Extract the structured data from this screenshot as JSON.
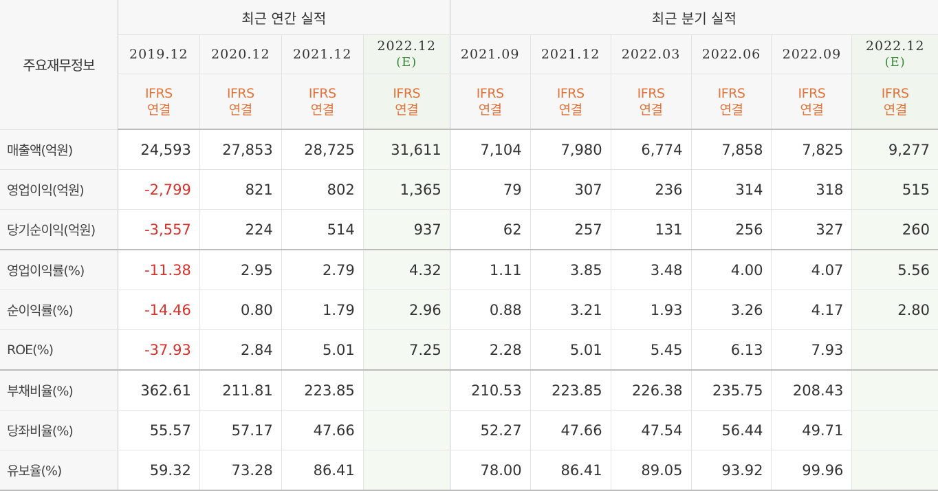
{
  "header": {
    "corner_label": "주요재무정보",
    "annual_title": "최근 연간 실적",
    "quarterly_title": "최근 분기 실적",
    "ifrs_top": "IFRS",
    "ifrs_bottom": "연결",
    "estimate_tag": "(E)",
    "periods": [
      {
        "date": "2019.12"
      },
      {
        "date": "2020.12"
      },
      {
        "date": "2021.12"
      },
      {
        "date": "2022.12"
      },
      {
        "date": "2021.09"
      },
      {
        "date": "2021.12"
      },
      {
        "date": "2022.03"
      },
      {
        "date": "2022.06"
      },
      {
        "date": "2022.09"
      },
      {
        "date": "2022.12"
      }
    ]
  },
  "rows": [
    {
      "label": "매출액(억원)",
      "values": [
        "24,593",
        "27,853",
        "28,725",
        "31,611",
        "7,104",
        "7,980",
        "6,774",
        "7,858",
        "7,825",
        "9,277"
      ]
    },
    {
      "label": "영업이익(억원)",
      "values": [
        "-2,799",
        "821",
        "802",
        "1,365",
        "79",
        "307",
        "236",
        "314",
        "318",
        "515"
      ]
    },
    {
      "label": "당기순이익(억원)",
      "values": [
        "-3,557",
        "224",
        "514",
        "937",
        "62",
        "257",
        "131",
        "256",
        "327",
        "260"
      ]
    },
    {
      "label": "영업이익률(%)",
      "values": [
        "-11.38",
        "2.95",
        "2.79",
        "4.32",
        "1.11",
        "3.85",
        "3.48",
        "4.00",
        "4.07",
        "5.56"
      ]
    },
    {
      "label": "순이익률(%)",
      "values": [
        "-14.46",
        "0.80",
        "1.79",
        "2.96",
        "0.88",
        "3.21",
        "1.93",
        "3.26",
        "4.17",
        "2.80"
      ]
    },
    {
      "label": "ROE(%)",
      "values": [
        "-37.93",
        "2.84",
        "5.01",
        "7.25",
        "2.28",
        "5.01",
        "5.45",
        "6.13",
        "7.93",
        ""
      ]
    },
    {
      "label": "부채비율(%)",
      "values": [
        "362.61",
        "211.81",
        "223.85",
        "",
        "210.53",
        "223.85",
        "226.38",
        "235.75",
        "208.43",
        ""
      ]
    },
    {
      "label": "당좌비율(%)",
      "values": [
        "55.57",
        "57.17",
        "47.66",
        "",
        "52.27",
        "47.66",
        "47.54",
        "56.44",
        "49.71",
        ""
      ]
    },
    {
      "label": "유보율(%)",
      "values": [
        "59.32",
        "73.28",
        "86.41",
        "",
        "78.00",
        "86.41",
        "89.05",
        "93.92",
        "99.96",
        ""
      ]
    }
  ],
  "colors": {
    "negative": "#d9312b",
    "ifrs": "#e2743b",
    "estimate_tag": "#3a8a3a",
    "estimate_bg": "#f4f9f2",
    "header_bg": "#f7f7f7"
  }
}
